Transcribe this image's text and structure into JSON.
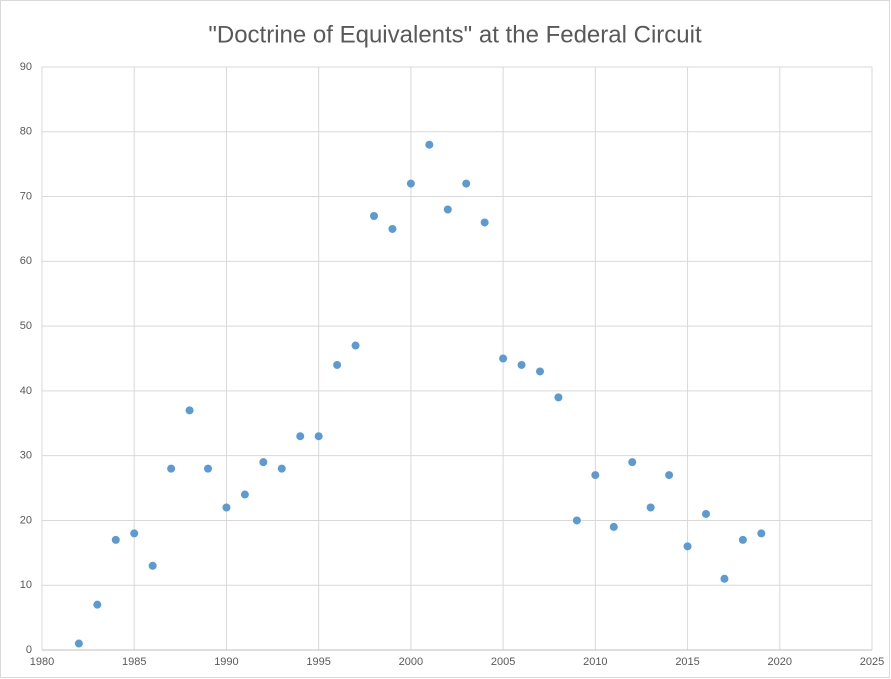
{
  "chart_data": {
    "type": "scatter",
    "title": "\"Doctrine of Equivalents\" at the Federal Circuit",
    "series": [
      {
        "color": "#5b9bd5",
        "x": [
          1982,
          1983,
          1984,
          1985,
          1986,
          1987,
          1988,
          1989,
          1990,
          1991,
          1992,
          1993,
          1994,
          1995,
          1996,
          1997,
          1998,
          1999,
          2000,
          2001,
          2002,
          2003,
          2004,
          2005,
          2006,
          2007,
          2008,
          2009,
          2010,
          2011,
          2012,
          2013,
          2014,
          2015,
          2016,
          2017,
          2018,
          2019
        ],
        "values": [
          1,
          7,
          17,
          18,
          13,
          28,
          37,
          28,
          22,
          24,
          29,
          28,
          33,
          33,
          44,
          47,
          67,
          65,
          72,
          78,
          68,
          72,
          66,
          45,
          44,
          43,
          39,
          20,
          27,
          19,
          29,
          22,
          27,
          16,
          21,
          11,
          17,
          18
        ]
      }
    ],
    "xlim": [
      1980,
      2025
    ],
    "xticks": [
      1980,
      1985,
      1990,
      1995,
      2000,
      2005,
      2010,
      2015,
      2020,
      2025
    ],
    "ylim": [
      0,
      90
    ],
    "yticks": [
      0,
      10,
      20,
      30,
      40,
      50,
      60,
      70,
      80,
      90
    ],
    "grid": true
  }
}
